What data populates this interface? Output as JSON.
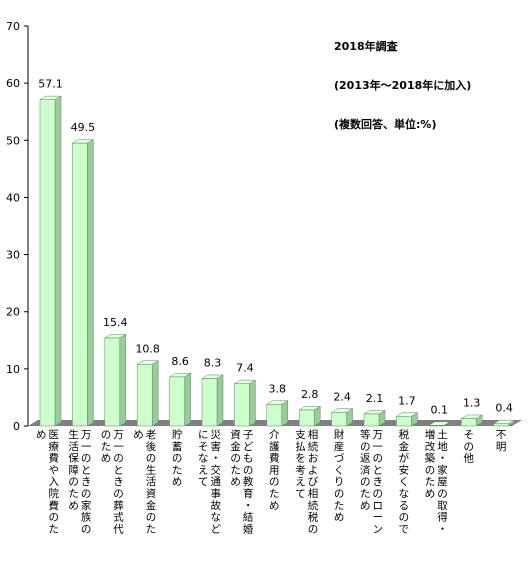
{
  "chart_data": {
    "type": "bar",
    "annotation": [
      "2018年調査",
      "(2013年～2018年に加入)",
      "(複数回答、単位:%)"
    ],
    "categories": [
      "医療費や入院費のため",
      "万一のときの家族の生活保障のため",
      "万一のときの葬式代のため",
      "老後の生活資金のため",
      "貯蓄のため",
      "災害・交通事故などにそなえて",
      "子どもの教育・結婚資金のため",
      "介護費用のため",
      "相続および相続税の支払を考えて",
      "財産づくりのため",
      "万一のときのローン等の返済のため",
      "税金が安くなるので",
      "土地・家屋の取得・増改築のため",
      "その他",
      "不明"
    ],
    "values": [
      57.1,
      49.5,
      15.4,
      10.8,
      8.6,
      8.3,
      7.4,
      3.8,
      2.8,
      2.4,
      2.1,
      1.7,
      0.1,
      1.3,
      0.4
    ],
    "value_labels": [
      "57.1",
      "49.5",
      "15.4",
      "10.8",
      "8.6",
      "8.3",
      "7.4",
      "3.8",
      "2.8",
      "2.4",
      "2.1",
      "1.7",
      "0.1",
      "1.3",
      "0.4"
    ],
    "yticks": [
      "0",
      "10",
      "20",
      "30",
      "40",
      "50",
      "60",
      "70"
    ],
    "ylim": [
      0,
      70
    ],
    "grid": false,
    "legend": "none",
    "colors": {
      "bar_front": "#ccffcc",
      "bar_side": "#99cc99",
      "bar_top": "#e6ffe6",
      "bar_stroke": "#5a8a5a",
      "floor": "#808080",
      "axis": "#000000"
    }
  }
}
